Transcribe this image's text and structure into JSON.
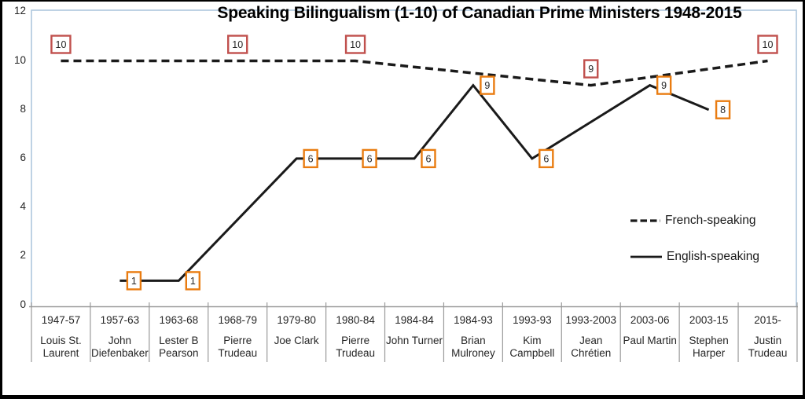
{
  "chart_data": {
    "type": "line",
    "title": "Speaking Bilingualism (1-10) of Canadian Prime Ministers 1948-2015",
    "xlabel": "",
    "ylabel": "",
    "ylim": [
      0,
      12
    ],
    "yticks": [
      0,
      2,
      4,
      6,
      8,
      10,
      12
    ],
    "grid": false,
    "legend_position": "middle-right",
    "categories": [
      {
        "years": "1947-57",
        "name": "Louis St. Laurent",
        "name_lines": [
          "Louis St.",
          "Laurent"
        ]
      },
      {
        "years": "1957-63",
        "name": "John Diefenbaker",
        "name_lines": [
          "John",
          "Diefenbaker"
        ]
      },
      {
        "years": "1963-68",
        "name": "Lester B Pearson",
        "name_lines": [
          "Lester B",
          "Pearson"
        ]
      },
      {
        "years": "1968-79",
        "name": "Pierre Trudeau",
        "name_lines": [
          "Pierre",
          "Trudeau"
        ]
      },
      {
        "years": "1979-80",
        "name": "Joe Clark",
        "name_lines": [
          "Joe Clark"
        ]
      },
      {
        "years": "1980-84",
        "name": "Pierre Trudeau",
        "name_lines": [
          "Pierre",
          "Trudeau"
        ]
      },
      {
        "years": "1984-84",
        "name": "John Turner",
        "name_lines": [
          "John Turner"
        ]
      },
      {
        "years": "1984-93",
        "name": "Brian Mulroney",
        "name_lines": [
          "Brian",
          "Mulroney"
        ]
      },
      {
        "years": "1993-93",
        "name": "Kim Campbell",
        "name_lines": [
          "Kim",
          "Campbell"
        ]
      },
      {
        "years": "1993-2003",
        "name": "Jean Chrétien",
        "name_lines": [
          "Jean",
          "Chrétien"
        ]
      },
      {
        "years": "2003-06",
        "name": "Paul Martin",
        "name_lines": [
          "Paul Martin"
        ]
      },
      {
        "years": "2003-15",
        "name": "Stephen Harper",
        "name_lines": [
          "Stephen",
          "Harper"
        ]
      },
      {
        "years": "2015-",
        "name": "Justin Trudeau",
        "name_lines": [
          "Justin",
          "Trudeau"
        ]
      }
    ],
    "series": [
      {
        "name": "French-speaking",
        "line_style": "dashed",
        "label_position": "above",
        "box_color": "#C0504D",
        "values": [
          10,
          null,
          null,
          10,
          null,
          10,
          null,
          null,
          null,
          9,
          null,
          null,
          10
        ]
      },
      {
        "name": "English-speaking",
        "line_style": "solid",
        "label_position": "right",
        "box_color": "#E97C11",
        "values": [
          null,
          1,
          1,
          null,
          6,
          6,
          6,
          9,
          6,
          null,
          9,
          8,
          null
        ]
      }
    ],
    "colors": {
      "line": "#1a1a1a",
      "plot_border": "#A9C4DC",
      "axis": "#9a9a9a",
      "text": "#262626"
    }
  }
}
